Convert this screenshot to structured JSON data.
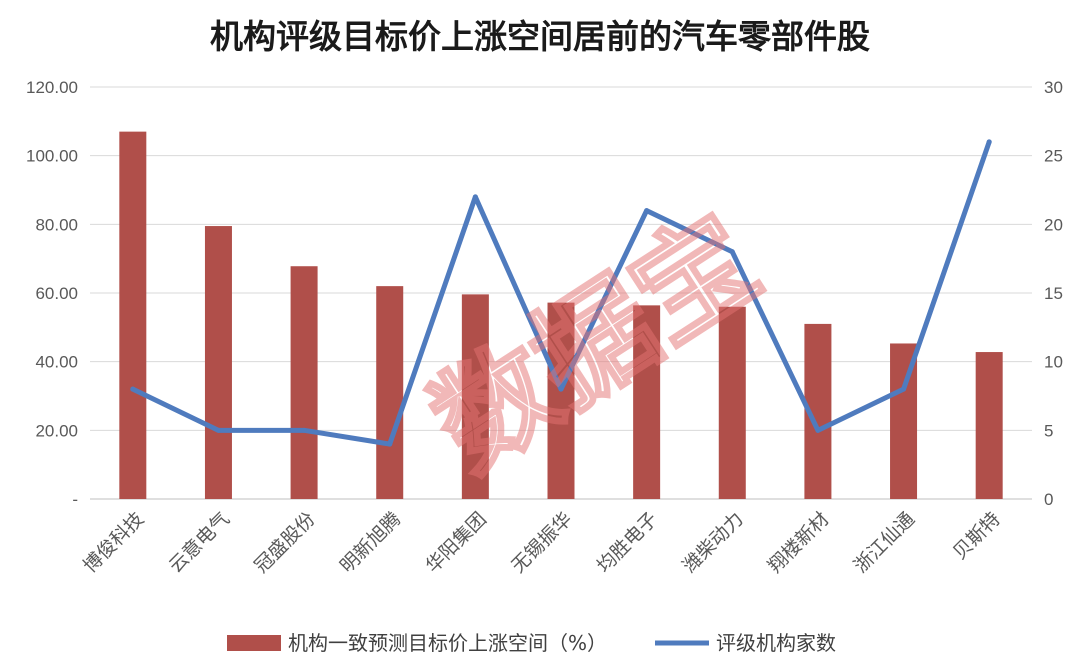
{
  "chart_data": {
    "type": "bar",
    "title": "机构评级目标价上涨空间居前的汽车零部件股",
    "categories": [
      "博俊科技",
      "云意电气",
      "冠盛股份",
      "明新旭腾",
      "华阳集团",
      "无锡振华",
      "均胜电子",
      "潍柴动力",
      "翔楼新材",
      "浙江仙通",
      "贝斯特"
    ],
    "series": [
      {
        "name": "机构一致预测目标价上涨空间（%）",
        "type": "bar",
        "axis": "left",
        "color": "#b04f4a",
        "values": [
          107.0,
          79.5,
          67.8,
          62.0,
          59.6,
          57.2,
          56.4,
          56.0,
          51.0,
          45.3,
          42.8
        ]
      },
      {
        "name": "评级机构家数",
        "type": "line",
        "axis": "right",
        "color": "#4f7bbe",
        "values": [
          8,
          5,
          5,
          4,
          22,
          8,
          21,
          18,
          5,
          8,
          26
        ]
      }
    ],
    "y_left": {
      "min": 0,
      "max": 120,
      "ticks": [
        "-",
        "20.00",
        "40.00",
        "60.00",
        "80.00",
        "100.00",
        "120.00"
      ]
    },
    "y_right": {
      "min": 0,
      "max": 30,
      "ticks": [
        "0",
        "5",
        "10",
        "15",
        "20",
        "25",
        "30"
      ]
    },
    "grid": true,
    "legend_position": "bottom"
  },
  "watermark": "数据宝"
}
